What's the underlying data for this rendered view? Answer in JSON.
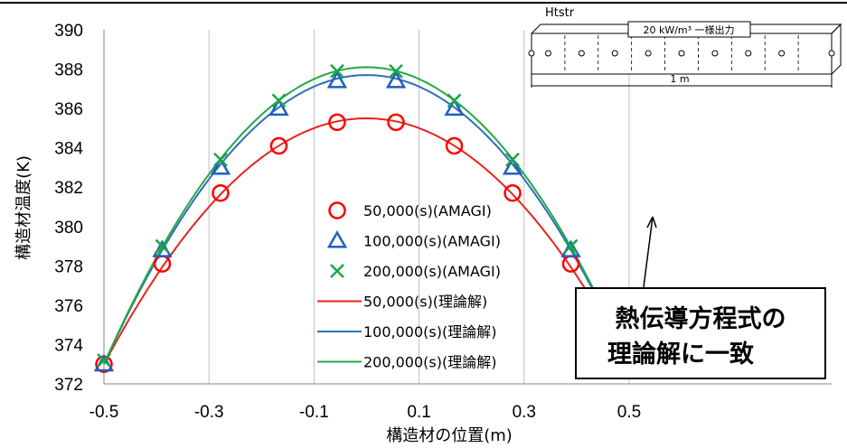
{
  "chart_data": {
    "type": "line",
    "xlabel": "構造材の位置(m)",
    "ylabel": "構造材温度(K)",
    "xlim": [
      -0.5,
      0.6
    ],
    "ylim": [
      372,
      390
    ],
    "x_ticks": [
      "-0.5",
      "-0.3",
      "-0.1",
      "0.1",
      "0.3",
      "0.5"
    ],
    "y_ticks": [
      "372",
      "374",
      "376",
      "378",
      "380",
      "382",
      "384",
      "386",
      "388",
      "390"
    ],
    "grid": "vertical",
    "legend_position": "center",
    "series": [
      {
        "name": "50,000(s)(AMAGI)",
        "kind": "markers",
        "marker": "circle",
        "color": "#ff0000",
        "x": [
          -0.5,
          -0.389,
          -0.278,
          -0.167,
          -0.056,
          0.056,
          0.167,
          0.278,
          0.389
        ],
        "y": [
          373.0,
          378.1,
          381.7,
          384.1,
          385.3,
          385.3,
          384.1,
          381.7,
          378.1
        ]
      },
      {
        "name": "100,000(s)(AMAGI)",
        "kind": "markers",
        "marker": "triangle",
        "color": "#1f5fbf",
        "x": [
          -0.5,
          -0.389,
          -0.278,
          -0.167,
          -0.056,
          0.056,
          0.167,
          0.278,
          0.389
        ],
        "y": [
          373.0,
          378.8,
          383.0,
          386.0,
          387.4,
          387.4,
          386.0,
          383.0,
          378.8
        ]
      },
      {
        "name": "200,000(s)(AMAGI)",
        "kind": "markers",
        "marker": "x",
        "color": "#1aa64a",
        "x": [
          -0.5,
          -0.389,
          -0.278,
          -0.167,
          -0.056,
          0.056,
          0.167,
          0.278,
          0.389
        ],
        "y": [
          373.2,
          379.0,
          383.4,
          386.4,
          387.9,
          387.9,
          386.4,
          383.4,
          379.0
        ]
      },
      {
        "name": "50,000(s)(理論解)",
        "kind": "line",
        "color": "#e8231c",
        "peak": 385.5,
        "edge": 373.0,
        "x_range": [
          -0.5,
          0.5
        ]
      },
      {
        "name": "100,000(s)(理論解)",
        "kind": "line",
        "color": "#2d6fb5",
        "peak": 387.7,
        "edge": 373.0,
        "x_range": [
          -0.5,
          0.5
        ]
      },
      {
        "name": "200,000(s)(理論解)",
        "kind": "line",
        "color": "#25a845",
        "peak": 388.1,
        "edge": 373.0,
        "x_range": [
          -0.5,
          0.5
        ]
      }
    ],
    "inset": {
      "title": "Htstr",
      "load_label": "20 kW/m³ 一様出力",
      "length_label": "1 m"
    },
    "callout": {
      "line1": "熱伝導方程式の",
      "line2": "理論解に一致"
    }
  }
}
